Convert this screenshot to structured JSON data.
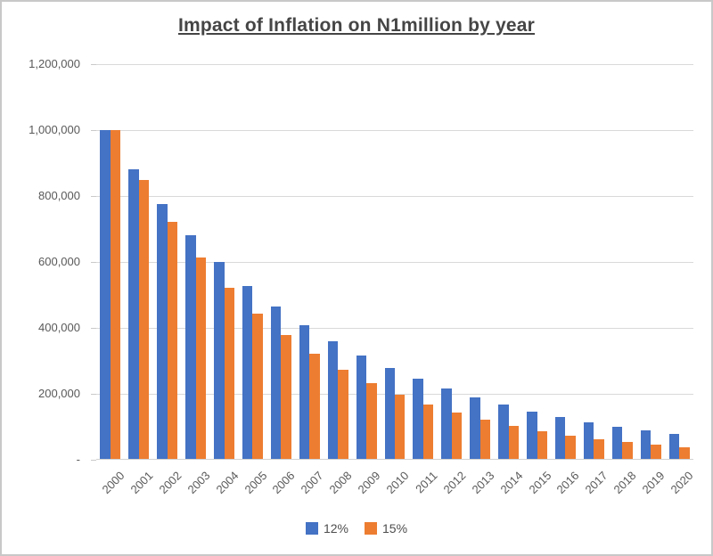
{
  "colors": {
    "series_12": "#4472C4",
    "series_15": "#ED7D31",
    "gridline": "#D9D9D9",
    "axis_line": "#D2D2D2",
    "axis_label": "#595959",
    "title": "#454545",
    "frame_border": "#C8C8C8",
    "background": "#FFFFFF"
  },
  "chart_data": {
    "type": "bar",
    "title": "Impact of Inflation on N1million by year",
    "categories": [
      "2000",
      "2001",
      "2002",
      "2003",
      "2004",
      "2005",
      "2006",
      "2007",
      "2008",
      "2009",
      "2010",
      "2011",
      "2012",
      "2013",
      "2014",
      "2015",
      "2016",
      "2017",
      "2018",
      "2019",
      "2020"
    ],
    "series": [
      {
        "name": "12%",
        "color": "#4472C4",
        "values": [
          1000000,
          880000,
          774400,
          681472,
          599695,
          527732,
          464404,
          408676,
          359635,
          316478,
          278501,
          245081,
          215671,
          189791,
          167016,
          146974,
          129337,
          113817,
          100159,
          88140,
          77563
        ]
      },
      {
        "name": "15%",
        "color": "#ED7D31",
        "values": [
          1000000,
          850000,
          722500,
          614125,
          522006,
          443705,
          377150,
          320577,
          272491,
          231617,
          196874,
          167343,
          142242,
          120905,
          102770,
          87354,
          74251,
          63113,
          53646,
          45599,
          38760
        ]
      }
    ],
    "xlabel": "",
    "ylabel": "",
    "ylim": [
      0,
      1200000
    ],
    "ytick_interval": 200000,
    "yticks": [
      {
        "value": 0,
        "label": "-"
      },
      {
        "value": 200000,
        "label": "200,000"
      },
      {
        "value": 400000,
        "label": "400,000"
      },
      {
        "value": 600000,
        "label": "600,000"
      },
      {
        "value": 800000,
        "label": "800,000"
      },
      {
        "value": 1000000,
        "label": "1,000,000"
      },
      {
        "value": 1200000,
        "label": "1,200,000"
      }
    ],
    "grid": true,
    "legend_position": "bottom",
    "legend": [
      {
        "label": "12%",
        "color": "#4472C4"
      },
      {
        "label": "15%",
        "color": "#ED7D31"
      }
    ]
  }
}
